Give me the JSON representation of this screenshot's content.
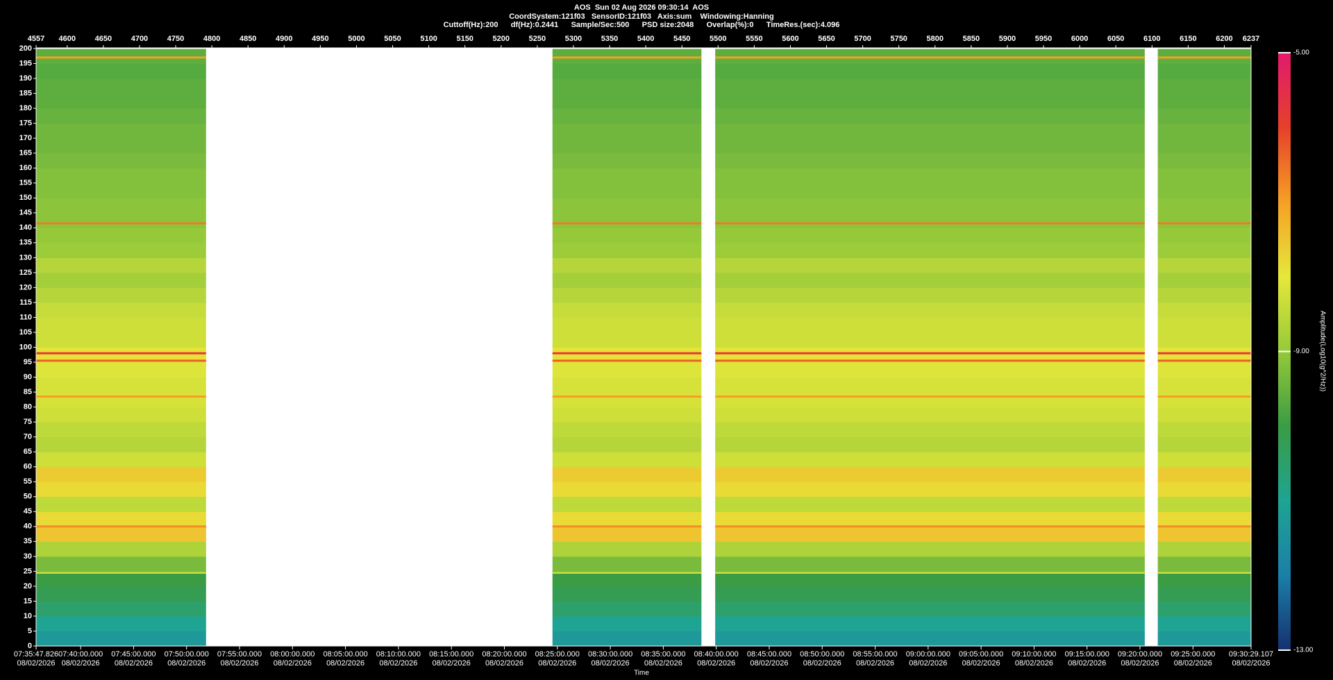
{
  "chart_data": {
    "type": "spectrogram",
    "title": "AOS  Sun 02 Aug 2026 09:30:14  AOS",
    "subtitle": [
      "CoordSystem:121f03   SensorID:121f03   Axis:sum    Windowing:Hanning",
      "Cuttoff(Hz):200      df(Hz):0.2441      Sample/Sec:500      PSD size:2048      Overlap(%):0      TimeRes.(sec):4.096"
    ],
    "x_label": "Time",
    "colorbar_label": "Amplitude(Log10(g^2/Hz))",
    "xlim": [
      4557,
      6237
    ],
    "xticks": [
      4557,
      4600,
      4650,
      4700,
      4750,
      4800,
      4850,
      4900,
      4950,
      5000,
      5050,
      5100,
      5150,
      5200,
      5250,
      5300,
      5350,
      5400,
      5450,
      5500,
      5550,
      5600,
      5650,
      5700,
      5750,
      5800,
      5850,
      5900,
      5950,
      6000,
      6050,
      6100,
      6150,
      6200,
      6237
    ],
    "x2ticks": [
      {
        "value": 4557,
        "label": "07:35:47.826"
      },
      {
        "value": 4618.57,
        "label": "07:40:00.000"
      },
      {
        "value": 4691.81,
        "label": "07:45:00.000"
      },
      {
        "value": 4765.05,
        "label": "07:50:00.000"
      },
      {
        "value": 4838.29,
        "label": "07:55:00.000"
      },
      {
        "value": 4911.54,
        "label": "08:00:00.000"
      },
      {
        "value": 4984.78,
        "label": "08:05:00.000"
      },
      {
        "value": 5058.02,
        "label": "08:10:00.000"
      },
      {
        "value": 5131.26,
        "label": "08:15:00.000"
      },
      {
        "value": 5204.5,
        "label": "08:20:00.000"
      },
      {
        "value": 5277.75,
        "label": "08:25:00.000"
      },
      {
        "value": 5350.99,
        "label": "08:30:00.000"
      },
      {
        "value": 5424.23,
        "label": "08:35:00.000"
      },
      {
        "value": 5497.47,
        "label": "08:40:00.000"
      },
      {
        "value": 5570.71,
        "label": "08:45:00.000"
      },
      {
        "value": 5643.96,
        "label": "08:50:00.000"
      },
      {
        "value": 5717.2,
        "label": "08:55:00.000"
      },
      {
        "value": 5790.44,
        "label": "09:00:00.000"
      },
      {
        "value": 5863.68,
        "label": "09:05:00.000"
      },
      {
        "value": 5936.92,
        "label": "09:10:00.000"
      },
      {
        "value": 6010.17,
        "label": "09:15:00.000"
      },
      {
        "value": 6083.41,
        "label": "09:20:00.000"
      },
      {
        "value": 6156.66,
        "label": "09:25:00.000"
      },
      {
        "value": 6237,
        "label": "09:30:29.107"
      }
    ],
    "x2tick_dates": [
      "08/02/2026",
      "08/02/2026",
      "08/02/2026",
      "08/02/2026",
      "08/02/2026",
      "08/02/2026",
      "08/02/2026",
      "08/02/2026",
      "08/02/2026",
      "08/02/2026",
      "08/02/2026",
      "08/02/2026",
      "08/02/2026",
      "08/02/2026",
      "08/02/2026",
      "08/02/2026",
      "08/02/2026",
      "08/02/2026",
      "08/02/2026",
      "08/02/2026",
      "08/02/2026",
      "08/02/2026",
      "08/02/2026",
      "08/02/2026"
    ],
    "ylim": [
      0,
      200
    ],
    "yticks": [
      0,
      5,
      10,
      15,
      20,
      25,
      30,
      35,
      40,
      45,
      50,
      55,
      60,
      65,
      70,
      75,
      80,
      85,
      90,
      95,
      100,
      105,
      110,
      115,
      120,
      125,
      130,
      135,
      140,
      145,
      150,
      155,
      160,
      165,
      170,
      175,
      180,
      185,
      190,
      195,
      200
    ],
    "segments": [
      [
        4557,
        4792
      ],
      [
        5271,
        5477
      ],
      [
        5496,
        6090
      ],
      [
        6108,
        6237
      ]
    ],
    "frequency_bins": [
      0,
      5,
      10,
      15,
      20,
      25,
      30,
      35,
      40,
      45,
      50,
      55,
      60,
      65,
      70,
      75,
      80,
      85,
      90,
      95,
      100,
      105,
      110,
      115,
      120,
      125,
      130,
      135,
      140,
      145,
      150,
      155,
      160,
      165,
      170,
      175,
      180,
      185,
      190,
      195,
      200
    ],
    "z": [
      -11.3,
      -11.0,
      -10.5,
      -10.2,
      -10.0,
      -9.3,
      -8.7,
      -7.5,
      -7.8,
      -8.5,
      -7.8,
      -7.6,
      -8.3,
      -8.6,
      -8.5,
      -8.3,
      -8.2,
      -8.2,
      -8.1,
      -7.9,
      -8.3,
      -8.3,
      -8.4,
      -8.6,
      -8.8,
      -8.6,
      -8.9,
      -9.0,
      -9.1,
      -9.1,
      -9.2,
      -9.2,
      -9.3,
      -9.4,
      -9.4,
      -9.5,
      -9.6,
      -9.6,
      -9.7,
      -9.6
    ],
    "lines": [
      {
        "freq": 197,
        "value": -7.0
      },
      {
        "freq": 141.5,
        "value": -6.6
      },
      {
        "freq": 98,
        "value": -5.8
      },
      {
        "freq": 95.5,
        "value": -6.3
      },
      {
        "freq": 83.5,
        "value": -7.0
      },
      {
        "freq": 40,
        "value": -6.8
      },
      {
        "freq": 24.5,
        "value": -8.5
      }
    ],
    "zlim": [
      -13,
      -5
    ],
    "zticks": [
      {
        "value": -5,
        "label": "-5.00"
      },
      {
        "value": -9,
        "label": "-9.00"
      },
      {
        "value": -13,
        "label": "-13.00"
      }
    ],
    "colormap": [
      "#16306e",
      "#1b7fa8",
      "#1fa392",
      "#3a9c43",
      "#95c93a",
      "#e6e83a",
      "#f5a025",
      "#e6402a",
      "#e21a6e"
    ]
  }
}
